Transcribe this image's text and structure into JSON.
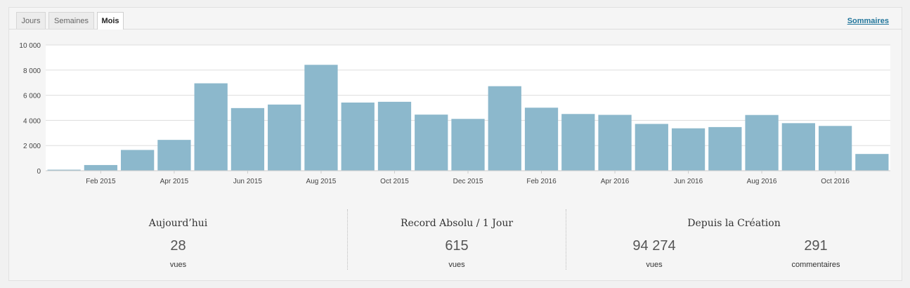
{
  "tabs": [
    {
      "label": "Jours",
      "active": false
    },
    {
      "label": "Semaines",
      "active": false
    },
    {
      "label": "Mois",
      "active": true
    }
  ],
  "summary_link": "Sommaires",
  "colors": {
    "bar": "#8cb8cc",
    "grid": "#dddddd",
    "axis": "#cccccc"
  },
  "chart_data": {
    "type": "bar",
    "title": "",
    "xlabel": "",
    "ylabel": "",
    "ylim": [
      0,
      10000
    ],
    "yticks": [
      0,
      2000,
      4000,
      6000,
      8000,
      10000
    ],
    "ytick_labels": [
      "0",
      "2 000",
      "4 000",
      "6 000",
      "8 000",
      "10 000"
    ],
    "grid": true,
    "categories": [
      "Jan 2015",
      "Feb 2015",
      "Mar 2015",
      "Apr 2015",
      "May 2015",
      "Jun 2015",
      "Jul 2015",
      "Aug 2015",
      "Sep 2015",
      "Oct 2015",
      "Nov 2015",
      "Dec 2015",
      "Jan 2016",
      "Feb 2016",
      "Mar 2016",
      "Apr 2016",
      "May 2016",
      "Jun 2016",
      "Jul 2016",
      "Aug 2016",
      "Sep 2016",
      "Oct 2016",
      "Nov 2016"
    ],
    "values": [
      80,
      450,
      1650,
      2450,
      6950,
      4980,
      5260,
      8420,
      5420,
      5480,
      4460,
      4120,
      6720,
      5010,
      4510,
      4440,
      3720,
      3370,
      3470,
      4430,
      3780,
      3560,
      1330
    ],
    "x_tick_labels": [
      {
        "index": 1,
        "label": "Feb 2015"
      },
      {
        "index": 3,
        "label": "Apr 2015"
      },
      {
        "index": 5,
        "label": "Jun 2015"
      },
      {
        "index": 7,
        "label": "Aug 2015"
      },
      {
        "index": 9,
        "label": "Oct 2015"
      },
      {
        "index": 11,
        "label": "Dec 2015"
      },
      {
        "index": 13,
        "label": "Feb 2016"
      },
      {
        "index": 15,
        "label": "Apr 2016"
      },
      {
        "index": 17,
        "label": "Jun 2016"
      },
      {
        "index": 19,
        "label": "Aug 2016"
      },
      {
        "index": 21,
        "label": "Oct 2016"
      }
    ]
  },
  "stats": {
    "today": {
      "title": "Aujourd’hui",
      "value": "28",
      "label": "vues"
    },
    "best": {
      "title": "Record Absolu / 1 Jour",
      "value": "615",
      "label": "vues"
    },
    "all_time": {
      "title": "Depuis la Création",
      "views_value": "94 274",
      "views_label": "vues",
      "comments_value": "291",
      "comments_label": "commentaires"
    }
  }
}
